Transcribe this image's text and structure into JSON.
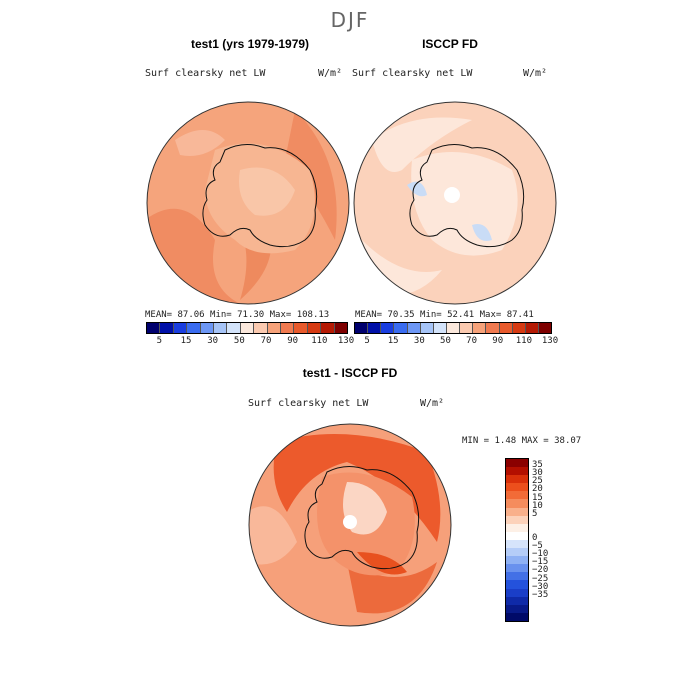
{
  "season": "DJF",
  "panels": [
    {
      "title": "test1 (yrs 1979-1979)",
      "variable": "Surf clearsky net LW",
      "units": "W/m²",
      "stats": "MEAN=   87.06   Min=   71.30   Max=  108.13"
    },
    {
      "title": "ISCCP FD",
      "variable": "Surf clearsky net LW",
      "units": "W/m²",
      "stats": "MEAN=   70.35   Min=   52.41   Max=   87.41"
    }
  ],
  "top_colorbar": {
    "labels": [
      "5",
      "15",
      "30",
      "50",
      "70",
      "90",
      "110",
      "130"
    ],
    "colors": [
      "#00006e",
      "#0010a8",
      "#1a3ee0",
      "#3a6cf0",
      "#6d97f5",
      "#a6c4f7",
      "#d3e3fa",
      "#fbe8dc",
      "#fbcab0",
      "#f6a27a",
      "#f07a50",
      "#e85a2c",
      "#d63a12",
      "#b51a04",
      "#7e0000"
    ]
  },
  "diff_panel": {
    "title": "test1 - ISCCP FD",
    "variable": "Surf clearsky net LW",
    "units": "W/m²",
    "stats": "MIN =    1.48 MAX =   38.07"
  },
  "diff_colorbar": {
    "labels": [
      "35",
      "30",
      "25",
      "20",
      "15",
      "10",
      "5",
      "0",
      "−5",
      "−10",
      "−15",
      "−20",
      "−25",
      "−30",
      "−35"
    ],
    "colors": [
      "#8a0000",
      "#b30f00",
      "#d9300a",
      "#ec4f1c",
      "#f26b37",
      "#f58c5d",
      "#f9b08b",
      "#fcd2ba",
      "#fdf0e6",
      "#ffffff",
      "#d6e4fb",
      "#b5cdf8",
      "#8fb1f4",
      "#6991ee",
      "#4370e6",
      "#2452dc",
      "#1a3ec8",
      "#0f2aa8",
      "#081a88",
      "#000a68"
    ]
  }
}
